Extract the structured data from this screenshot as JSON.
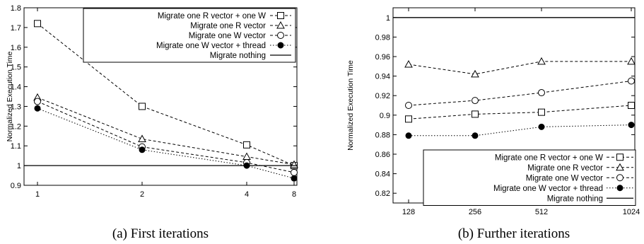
{
  "chart_data": [
    {
      "type": "line",
      "caption": "(a) First iterations",
      "ylabel": "Normalized Execution Time",
      "xlabel": "",
      "categories": [
        "1",
        "2",
        "4",
        "8"
      ],
      "ylim": [
        0.9,
        1.8
      ],
      "yticks": [
        "0.9",
        "1",
        "1.1",
        "1.2",
        "1.3",
        "1.4",
        "1.5",
        "1.6",
        "1.7",
        "1.8"
      ],
      "grid": false,
      "legend_position": "top-right",
      "series": [
        {
          "name": "Migrate one R vector + one W",
          "marker": "square",
          "dash": "dashed",
          "values": [
            1.72,
            1.3,
            1.105,
            1.0
          ]
        },
        {
          "name": "Migrate one R vector",
          "marker": "triangle",
          "dash": "dashed",
          "values": [
            1.345,
            1.135,
            1.045,
            1.005
          ]
        },
        {
          "name": "Migrate one W vector",
          "marker": "circle-open",
          "dash": "dashed",
          "values": [
            1.325,
            1.095,
            1.015,
            0.965
          ]
        },
        {
          "name": "Migrate one W vector + thread",
          "marker": "circle-filled",
          "dash": "dotted",
          "values": [
            1.29,
            1.08,
            1.0,
            0.935
          ]
        },
        {
          "name": "Migrate nothing",
          "marker": "none",
          "dash": "solid",
          "values": [
            1.0,
            1.0,
            1.0,
            1.0
          ]
        }
      ]
    },
    {
      "type": "line",
      "caption": "(b) Further iterations",
      "ylabel": "Normalized Execution Time",
      "xlabel": "",
      "categories": [
        "128",
        "256",
        "512",
        "1024"
      ],
      "ylim": [
        0.81,
        1.01
      ],
      "yticks": [
        "0.82",
        "0.84",
        "0.86",
        "0.88",
        "0.9",
        "0.92",
        "0.94",
        "0.96",
        "0.98",
        "1"
      ],
      "grid": false,
      "legend_position": "bottom-right",
      "series": [
        {
          "name": "Migrate one R vector + one W",
          "marker": "square",
          "dash": "dashed",
          "values": [
            0.896,
            0.901,
            0.903,
            0.91
          ]
        },
        {
          "name": "Migrate one R vector",
          "marker": "triangle",
          "dash": "dashed",
          "values": [
            0.952,
            0.942,
            0.955,
            0.955
          ]
        },
        {
          "name": "Migrate one W vector",
          "marker": "circle-open",
          "dash": "dashed",
          "values": [
            0.91,
            0.915,
            0.923,
            0.935
          ]
        },
        {
          "name": "Migrate one W vector + thread",
          "marker": "circle-filled",
          "dash": "dotted",
          "values": [
            0.879,
            0.879,
            0.888,
            0.89
          ]
        },
        {
          "name": "Migrate nothing",
          "marker": "none",
          "dash": "solid",
          "values": [
            1.0,
            1.0,
            1.0,
            1.0
          ]
        }
      ]
    }
  ]
}
